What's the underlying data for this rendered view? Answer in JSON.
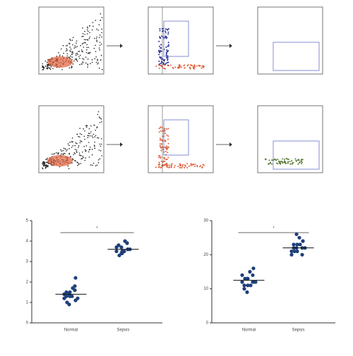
{
  "chart_data": [
    {
      "type": "dotplot",
      "categories": [
        "Normal",
        "Sepsis"
      ],
      "groups": [
        [
          1.2,
          1.4,
          1.3,
          1.6,
          1.1,
          1.5,
          1.0,
          1.3,
          1.7,
          1.2,
          1.4,
          0.9,
          1.5,
          1.8,
          2.2,
          1.3
        ],
        [
          3.5,
          3.7,
          3.4,
          3.9,
          3.6,
          3.8,
          3.3,
          3.5,
          4.0,
          3.6,
          3.7,
          3.4,
          3.5,
          3.9,
          3.6,
          3.8
        ]
      ],
      "means": [
        1.4,
        3.6
      ],
      "ylim": [
        0,
        5
      ],
      "yticks": [
        0,
        1,
        2,
        3,
        4,
        5
      ],
      "color": "#1f3f7a",
      "significance": "*"
    },
    {
      "type": "dotplot",
      "categories": [
        "Normal",
        "Sepsis"
      ],
      "groups": [
        [
          12,
          13,
          11,
          14,
          12,
          10,
          13,
          15,
          11,
          12,
          14,
          9,
          13,
          12,
          16,
          11
        ],
        [
          21,
          22,
          23,
          20,
          24,
          22,
          21,
          25,
          23,
          22,
          20,
          26,
          21,
          22,
          24,
          23
        ]
      ],
      "means": [
        12.5,
        22
      ],
      "ylim": [
        0,
        30
      ],
      "yticks": [
        0,
        10,
        20,
        30
      ],
      "color": "#1f3f7a",
      "significance": "*"
    }
  ]
}
